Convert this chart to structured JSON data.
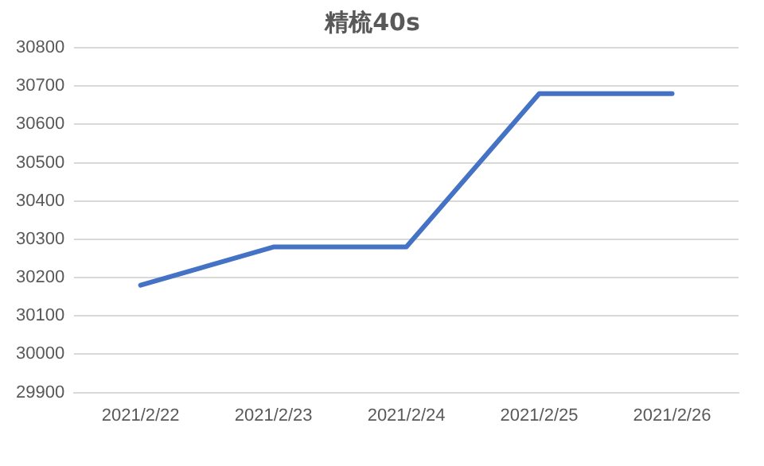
{
  "chart_data": {
    "type": "line",
    "title": "精梳40s",
    "categories": [
      "2021/2/22",
      "2021/2/23",
      "2021/2/24",
      "2021/2/25",
      "2021/2/26"
    ],
    "series": [
      {
        "color": "#4472c4",
        "values": [
          30180,
          30280,
          30280,
          30680,
          30680
        ]
      }
    ],
    "ylim": [
      29900,
      30800
    ],
    "yticks": [
      29900,
      30000,
      30100,
      30200,
      30300,
      30400,
      30500,
      30600,
      30700,
      30800
    ],
    "grid": "y",
    "legend": false,
    "marker": "none",
    "line_style": "solid"
  }
}
